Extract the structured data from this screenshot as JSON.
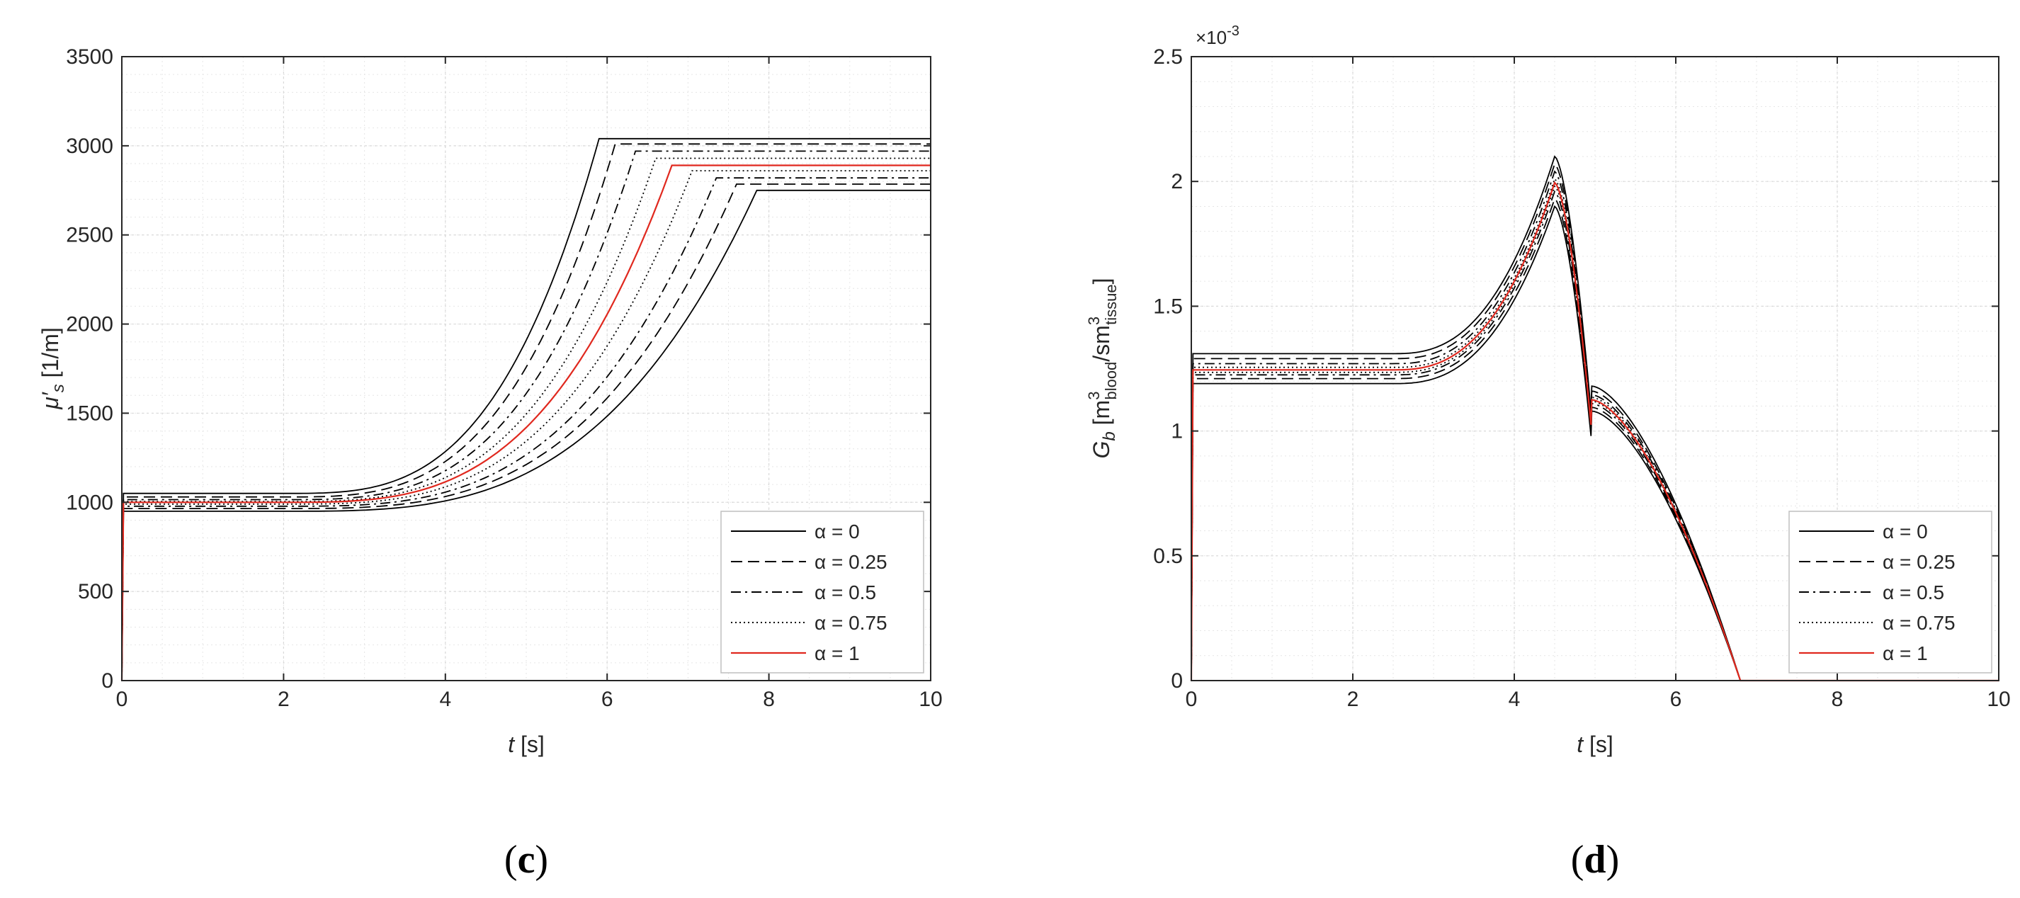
{
  "panels": {
    "c": {
      "label_open": "(",
      "label_letter": "c",
      "label_close": ")",
      "ylabel": "μ′s [1/m]",
      "xlabel": "t [s]"
    },
    "d": {
      "label_open": "(",
      "label_letter": "d",
      "label_close": ")",
      "ylabel": "Gb [m3blood/sm3tissue]",
      "xlabel": "t [s]",
      "y_multiplier": "×10-3"
    }
  },
  "legend": [
    "α = 0",
    "α = 0.25",
    "α = 0.5",
    "α = 0.75",
    "α = 1"
  ],
  "colors": {
    "black": "#000000",
    "red": "#e0281e",
    "grid": "#d9d9d9",
    "axis": "#262626"
  },
  "chart_data": [
    {
      "id": "c",
      "type": "line",
      "xlabel": "t [s]",
      "ylabel": "μ′s [1/m]",
      "xlim": [
        0,
        10
      ],
      "ylim": [
        0,
        3500
      ],
      "xticks": [
        "0",
        "2",
        "4",
        "6",
        "8",
        "10"
      ],
      "yticks": [
        "0",
        "500",
        "1000",
        "1500",
        "2000",
        "2500",
        "3000",
        "3500"
      ],
      "grid": true,
      "minor_grid": true,
      "legend_position": "lower-right",
      "series": [
        {
          "name": "α = 0",
          "style": "solid",
          "color": "#000000",
          "curves": [
            {
              "base": 1050,
              "t_end": 5.9,
              "plateau": 3040
            },
            {
              "base": 950,
              "t_end": 7.85,
              "plateau": 2750
            }
          ]
        },
        {
          "name": "α = 0.25",
          "style": "dashed",
          "color": "#000000",
          "curves": [
            {
              "base": 1030,
              "t_end": 6.1,
              "plateau": 3010
            },
            {
              "base": 965,
              "t_end": 7.6,
              "plateau": 2785
            }
          ]
        },
        {
          "name": "α = 0.5",
          "style": "dashdot",
          "color": "#000000",
          "curves": [
            {
              "base": 1015,
              "t_end": 6.35,
              "plateau": 2970
            },
            {
              "base": 978,
              "t_end": 7.35,
              "plateau": 2820
            }
          ]
        },
        {
          "name": "α = 0.75",
          "style": "dotted",
          "color": "#000000",
          "curves": [
            {
              "base": 1005,
              "t_end": 6.6,
              "plateau": 2930
            },
            {
              "base": 990,
              "t_end": 7.05,
              "plateau": 2860
            }
          ]
        },
        {
          "name": "α = 1",
          "style": "solid",
          "color": "#e0281e",
          "curves": [
            {
              "base": 1000,
              "t_end": 6.8,
              "plateau": 2890
            }
          ]
        }
      ]
    },
    {
      "id": "d",
      "type": "line",
      "xlabel": "t [s]",
      "ylabel": "Gb [m3blood/sm3tissue]",
      "y_multiplier": "×10-3",
      "xlim": [
        0,
        10
      ],
      "ylim": [
        0,
        2.5
      ],
      "xticks": [
        "0",
        "2",
        "4",
        "6",
        "8",
        "10"
      ],
      "yticks": [
        "0",
        "0.5",
        "1",
        "1.5",
        "2",
        "2.5"
      ],
      "grid": true,
      "minor_grid": true,
      "legend_position": "lower-right",
      "series": [
        {
          "name": "α = 0",
          "style": "solid",
          "color": "#000000",
          "curves": [
            {
              "base": 1.31,
              "peak": 2.1,
              "after_drop": 1.18
            },
            {
              "base": 1.19,
              "peak": 1.9,
              "after_drop": 1.08
            }
          ]
        },
        {
          "name": "α = 0.25",
          "style": "dashed",
          "color": "#000000",
          "curves": [
            {
              "base": 1.29,
              "peak": 2.07,
              "after_drop": 1.16
            },
            {
              "base": 1.21,
              "peak": 1.93,
              "after_drop": 1.095
            }
          ]
        },
        {
          "name": "α = 0.5",
          "style": "dashdot",
          "color": "#000000",
          "curves": [
            {
              "base": 1.27,
              "peak": 2.04,
              "after_drop": 1.145
            },
            {
              "base": 1.225,
              "peak": 1.96,
              "after_drop": 1.11
            }
          ]
        },
        {
          "name": "α = 0.75",
          "style": "dotted",
          "color": "#000000",
          "curves": [
            {
              "base": 1.255,
              "peak": 2.01,
              "after_drop": 1.135
            },
            {
              "base": 1.235,
              "peak": 1.98,
              "after_drop": 1.12
            }
          ]
        },
        {
          "name": "α = 1",
          "style": "solid",
          "color": "#e0281e",
          "curves": [
            {
              "base": 1.245,
              "peak": 1.995,
              "after_drop": 1.125
            }
          ]
        }
      ],
      "key_times": {
        "rise_start": 2.5,
        "peak_t": 4.5,
        "drop_t": 4.95,
        "zero_t": 6.8
      }
    }
  ]
}
